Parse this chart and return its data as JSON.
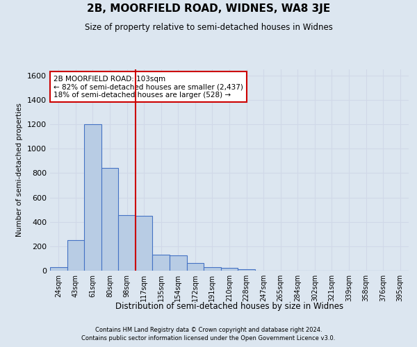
{
  "title": "2B, MOORFIELD ROAD, WIDNES, WA8 3JE",
  "subtitle": "Size of property relative to semi-detached houses in Widnes",
  "xlabel": "Distribution of semi-detached houses by size in Widnes",
  "ylabel": "Number of semi-detached properties",
  "footnote1": "Contains HM Land Registry data © Crown copyright and database right 2024.",
  "footnote2": "Contains public sector information licensed under the Open Government Licence v3.0.",
  "categories": [
    "24sqm",
    "43sqm",
    "61sqm",
    "80sqm",
    "98sqm",
    "117sqm",
    "135sqm",
    "154sqm",
    "172sqm",
    "191sqm",
    "210sqm",
    "228sqm",
    "247sqm",
    "265sqm",
    "284sqm",
    "302sqm",
    "321sqm",
    "339sqm",
    "358sqm",
    "376sqm",
    "395sqm"
  ],
  "values": [
    30,
    250,
    1200,
    840,
    455,
    450,
    130,
    125,
    60,
    30,
    20,
    10,
    0,
    0,
    0,
    0,
    0,
    0,
    0,
    0,
    0
  ],
  "bar_color": "#b8cce4",
  "bar_edge_color": "#4472c4",
  "grid_color": "#d0d8e8",
  "background_color": "#dce6f0",
  "property_bin_index": 4,
  "annotation_title": "2B MOORFIELD ROAD: 103sqm",
  "annotation_line1": "← 82% of semi-detached houses are smaller (2,437)",
  "annotation_line2": "18% of semi-detached houses are larger (528) →",
  "vline_color": "#cc0000",
  "annotation_box_color": "#ffffff",
  "annotation_box_edge": "#cc0000",
  "ylim": [
    0,
    1650
  ],
  "yticks": [
    0,
    200,
    400,
    600,
    800,
    1000,
    1200,
    1400,
    1600
  ]
}
